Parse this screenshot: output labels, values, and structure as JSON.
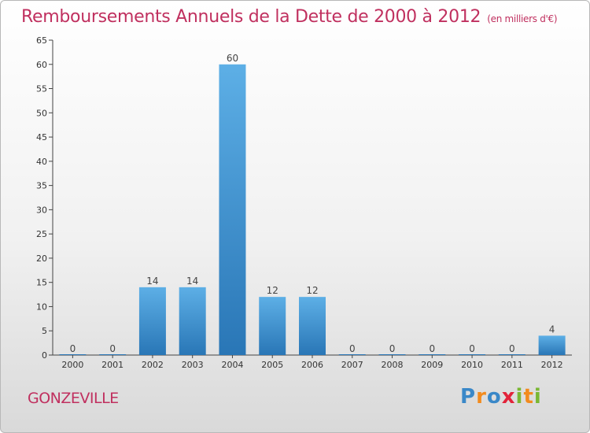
{
  "title": "Remboursements Annuels de la Dette de 2000 à 2012",
  "subtitle": "(en milliers d'€)",
  "city": "GONZEVILLE",
  "logo": {
    "text": "Proxiti",
    "letters": [
      {
        "ch": "P",
        "color": "#3a88c8"
      },
      {
        "ch": "r",
        "color": "#f28b1e"
      },
      {
        "ch": "o",
        "color": "#3a88c8"
      },
      {
        "ch": "x",
        "color": "#e2233a"
      },
      {
        "ch": "i",
        "color": "#7ab733"
      },
      {
        "ch": "t",
        "color": "#f28b1e"
      },
      {
        "ch": "i",
        "color": "#7ab733"
      }
    ]
  },
  "colors": {
    "title": "#c0305f",
    "bar_light": "#5aaee4",
    "bar_dark": "#2a78b8"
  },
  "chart_data": {
    "type": "bar",
    "title": "Remboursements Annuels de la Dette de 2000 à 2012",
    "subtitle": "(en milliers d'€)",
    "categories": [
      "2000",
      "2001",
      "2002",
      "2003",
      "2004",
      "2005",
      "2006",
      "2007",
      "2008",
      "2009",
      "2010",
      "2011",
      "2012"
    ],
    "values": [
      0,
      0,
      14,
      14,
      60,
      12,
      12,
      0,
      0,
      0,
      0,
      0,
      4
    ],
    "data_labels": [
      "0",
      "0",
      "14",
      "14",
      "60",
      "12",
      "12",
      "0",
      "0",
      "0",
      "0",
      "0",
      "4"
    ],
    "yticks": [
      0,
      5,
      10,
      15,
      20,
      25,
      30,
      35,
      40,
      45,
      50,
      55,
      60,
      65
    ],
    "ylim": [
      0,
      65
    ],
    "xlabel": "",
    "ylabel": "",
    "grid": false,
    "legend": "none"
  }
}
